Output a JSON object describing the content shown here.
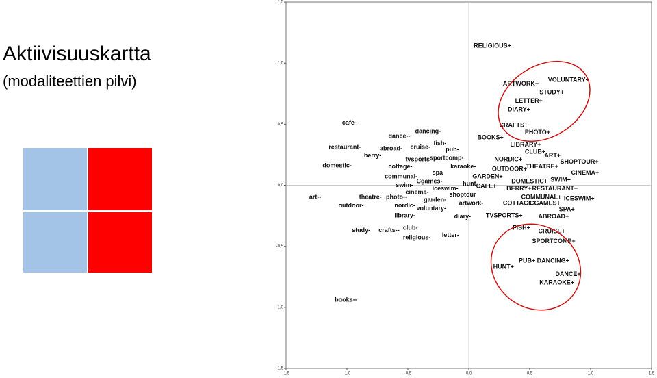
{
  "chart_data": {
    "type": "text-scatter",
    "title": "Aktiivisuuskartta",
    "subtitle": "(modaliteettien pilvi)",
    "xlim": [
      -1.5,
      1.5
    ],
    "ylim": [
      -1.5,
      1.5
    ],
    "xticks": [
      {
        "value": -1.5,
        "label": "-1,5"
      },
      {
        "value": -1,
        "label": "-1,0"
      },
      {
        "value": -0.5,
        "label": "-0,5"
      },
      {
        "value": 0,
        "label": "0,0"
      },
      {
        "value": 0.5,
        "label": "0,5"
      },
      {
        "value": 1,
        "label": "1,0"
      },
      {
        "value": 1.5,
        "label": "1,5"
      }
    ],
    "yticks": [
      {
        "value": -1.5,
        "label": "-1,5"
      },
      {
        "value": -1,
        "label": "-1,0"
      },
      {
        "value": -0.5,
        "label": "-0,5"
      },
      {
        "value": 0,
        "label": "0,0"
      },
      {
        "value": 0.5,
        "label": "0,5"
      },
      {
        "value": 1,
        "label": "1,0"
      },
      {
        "value": 1.5,
        "label": "1,5"
      }
    ],
    "series": [
      {
        "color": "#111111",
        "labels": [
          "RELIGIOUS+",
          "VOLUNTARY+",
          "ARTWORK+",
          "STUDY+",
          "LETTER+",
          "DIARY+",
          "CRAFTS+",
          "PHOTO+",
          "BOOKS+",
          "LIBRARY+",
          "CLUB+",
          "ART+",
          "NORDIC+",
          "SHOPTOUR+",
          "OUTDOOR+",
          "THEATRE+",
          "CINEMA+",
          "GARDEN+",
          "DOMESTIC+",
          "SWIM+",
          "CAFE+",
          "BERRY+",
          "RESTAURANT+",
          "COMMUNAL+",
          "ICESWIM+",
          "COTTAGE+",
          "CGAMES+",
          "SPA+",
          "TVSPORTS+",
          "ABROAD+",
          "FISH+",
          "CRUISE+",
          "SPORTCOMP+",
          "PUB+",
          "DANCING+",
          "HUNT+",
          "DANCE+",
          "KARAOKE+",
          "cafe-",
          "dancing-",
          "dance--",
          "fish-",
          "restaurant-",
          "abroad-",
          "cruise-",
          "pub-",
          "berry-",
          "tvsports-",
          "sportcomp-",
          "domestic-",
          "cottage-",
          "karaoke-",
          "spa",
          "communal-",
          "Cgames-",
          "hunt-",
          "swim-",
          "iceswim-",
          "cinema-",
          "shoptour",
          "art--",
          "theatre-",
          "photo--",
          "garden-",
          "artwork-",
          "outdoor-",
          "nordic-",
          "voluntary-",
          "library-",
          "diary-",
          "study-",
          "club-",
          "crafts--",
          "letter-",
          "religious-",
          "books--"
        ],
        "x": [
          0.04,
          0.65,
          0.28,
          0.58,
          0.38,
          0.32,
          0.25,
          0.46,
          0.07,
          0.34,
          0.46,
          0.62,
          0.21,
          0.75,
          0.19,
          0.47,
          0.84,
          0.03,
          0.35,
          0.67,
          0.06,
          0.31,
          0.52,
          0.43,
          0.78,
          0.28,
          0.5,
          0.74,
          0.14,
          0.57,
          0.36,
          0.57,
          0.52,
          0.41,
          0.56,
          0.2,
          0.71,
          0.58,
          -1.04,
          -0.44,
          -0.66,
          -0.29,
          -1.15,
          -0.73,
          -0.48,
          -0.19,
          -0.86,
          -0.52,
          -0.32,
          -1.2,
          -0.66,
          -0.15,
          -0.3,
          -0.69,
          -0.43,
          -0.05,
          -0.6,
          -0.3,
          -0.52,
          -0.16,
          -1.31,
          -0.9,
          -0.68,
          -0.37,
          -0.08,
          -1.07,
          -0.61,
          -0.43,
          -0.61,
          -0.12,
          -0.96,
          -0.54,
          -0.74,
          -0.22,
          -0.54,
          -1.1
        ],
        "values": [
          1.14,
          0.86,
          0.83,
          0.76,
          0.69,
          0.62,
          0.49,
          0.43,
          0.39,
          0.33,
          0.27,
          0.24,
          0.21,
          0.19,
          0.13,
          0.15,
          0.1,
          0.07,
          0.03,
          0.04,
          -0.01,
          -0.03,
          -0.03,
          -0.1,
          -0.11,
          -0.15,
          -0.15,
          -0.2,
          -0.25,
          -0.26,
          -0.35,
          -0.38,
          -0.46,
          -0.62,
          -0.62,
          -0.67,
          -0.73,
          -0.8,
          0.51,
          0.44,
          0.4,
          0.34,
          0.31,
          0.3,
          0.31,
          0.29,
          0.24,
          0.21,
          0.22,
          0.16,
          0.15,
          0.15,
          0.1,
          0.07,
          0.03,
          0.01,
          0,
          -0.03,
          -0.06,
          -0.08,
          -0.1,
          -0.1,
          -0.1,
          -0.12,
          -0.15,
          -0.17,
          -0.17,
          -0.19,
          -0.25,
          -0.26,
          -0.37,
          -0.35,
          -0.37,
          -0.41,
          -0.43,
          -0.94
        ]
      }
    ]
  }
}
